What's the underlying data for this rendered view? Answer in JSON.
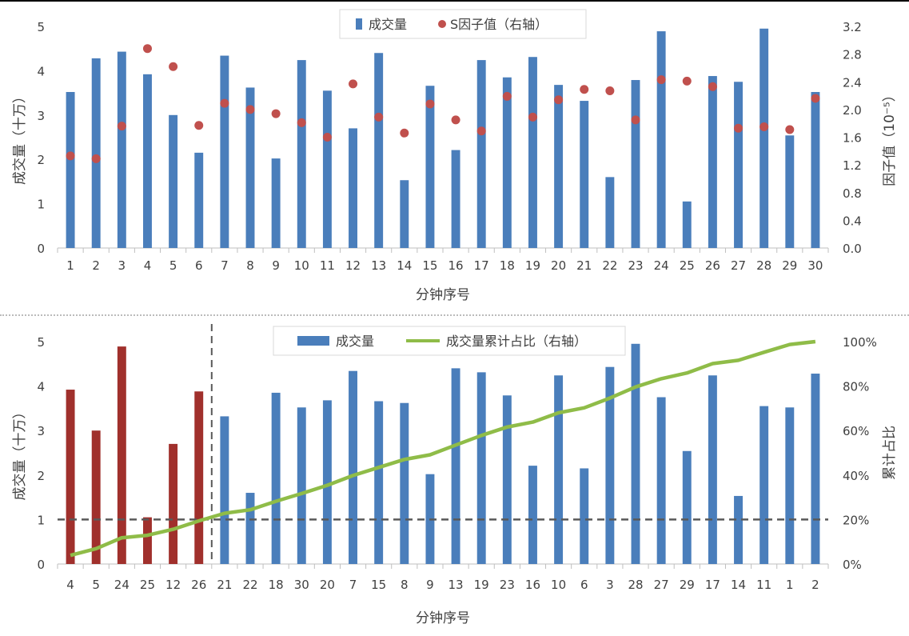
{
  "colors": {
    "bar_blue": "#4a7ebb",
    "bar_red": "#a0302c",
    "dot_red": "#c0504d",
    "line_green": "#8fbc48",
    "dash": "#595959",
    "axis": "#bfbfbf",
    "text": "#404040"
  },
  "chart_data": [
    {
      "type": "bar",
      "xlabel": "分钟序号",
      "ylabel": "成交量（十万）",
      "y2label": "因子值（10⁻⁵）",
      "legend": [
        "成交量",
        "S因子值（右轴）"
      ],
      "legend_position": "top-center",
      "categories": [
        "1",
        "2",
        "3",
        "4",
        "5",
        "6",
        "7",
        "8",
        "9",
        "10",
        "11",
        "12",
        "13",
        "14",
        "15",
        "16",
        "17",
        "18",
        "19",
        "20",
        "21",
        "22",
        "23",
        "24",
        "25",
        "26",
        "27",
        "28",
        "29",
        "30"
      ],
      "series": [
        {
          "name": "成交量",
          "type": "bar",
          "axis": "left",
          "values": [
            3.52,
            4.28,
            4.43,
            3.92,
            3.0,
            2.15,
            4.34,
            3.62,
            2.02,
            4.24,
            3.55,
            2.7,
            4.4,
            1.53,
            3.66,
            2.21,
            4.24,
            3.85,
            4.31,
            3.68,
            3.32,
            1.6,
            3.79,
            4.89,
            1.05,
            3.88,
            3.75,
            4.95,
            2.54,
            3.52
          ]
        },
        {
          "name": "S因子值（右轴）",
          "type": "scatter",
          "axis": "right",
          "values": [
            1.33,
            1.29,
            1.76,
            2.88,
            2.62,
            1.77,
            2.09,
            2.0,
            1.94,
            1.81,
            1.6,
            2.37,
            1.89,
            1.66,
            2.08,
            1.85,
            1.69,
            2.19,
            1.89,
            2.14,
            2.29,
            2.27,
            1.85,
            2.43,
            2.41,
            2.33,
            1.73,
            1.75,
            1.71,
            2.16
          ]
        }
      ],
      "ylim": [
        0,
        5
      ],
      "yticks": [
        "0",
        "1",
        "2",
        "3",
        "4",
        "5"
      ],
      "y2lim": [
        0,
        3.2
      ],
      "y2ticks": [
        "0.0",
        "0.4",
        "0.8",
        "1.2",
        "1.6",
        "2.0",
        "2.4",
        "2.8",
        "3.2"
      ],
      "grid": false
    },
    {
      "type": "bar",
      "xlabel": "分钟序号",
      "ylabel": "成交量（十万）",
      "y2label": "累计占比",
      "legend": [
        "成交量",
        "成交量累计占比（右轴）"
      ],
      "legend_position": "top-center",
      "categories": [
        "4",
        "5",
        "24",
        "25",
        "12",
        "26",
        "21",
        "22",
        "18",
        "30",
        "20",
        "7",
        "15",
        "8",
        "9",
        "13",
        "19",
        "23",
        "16",
        "10",
        "6",
        "3",
        "28",
        "27",
        "29",
        "17",
        "14",
        "11",
        "1",
        "2"
      ],
      "highlight_count": 6,
      "series": [
        {
          "name": "成交量",
          "type": "bar",
          "axis": "left",
          "values": [
            3.92,
            3.0,
            4.89,
            1.05,
            2.7,
            3.88,
            3.32,
            1.6,
            3.85,
            3.52,
            3.68,
            4.34,
            3.66,
            3.62,
            2.02,
            4.4,
            4.31,
            3.79,
            2.21,
            4.24,
            2.15,
            4.43,
            4.95,
            3.75,
            2.54,
            4.24,
            1.53,
            3.55,
            3.52,
            4.28
          ]
        },
        {
          "name": "成交量累计占比（右轴）",
          "type": "line",
          "axis": "right",
          "values": [
            3.9,
            6.9,
            11.8,
            12.9,
            15.6,
            19.4,
            22.8,
            24.4,
            28.2,
            31.7,
            35.4,
            39.8,
            43.4,
            47.0,
            49.1,
            53.5,
            57.8,
            61.6,
            63.8,
            68.0,
            70.2,
            74.6,
            79.6,
            83.3,
            85.9,
            90.1,
            91.6,
            95.2,
            98.7,
            100.0
          ]
        }
      ],
      "reference_line_y": 1,
      "ylim": [
        0,
        5
      ],
      "yticks": [
        "0",
        "1",
        "2",
        "3",
        "4",
        "5"
      ],
      "y2lim": [
        0,
        100
      ],
      "y2ticks": [
        "0%",
        "20%",
        "40%",
        "60%",
        "80%",
        "100%"
      ],
      "grid": false
    }
  ]
}
